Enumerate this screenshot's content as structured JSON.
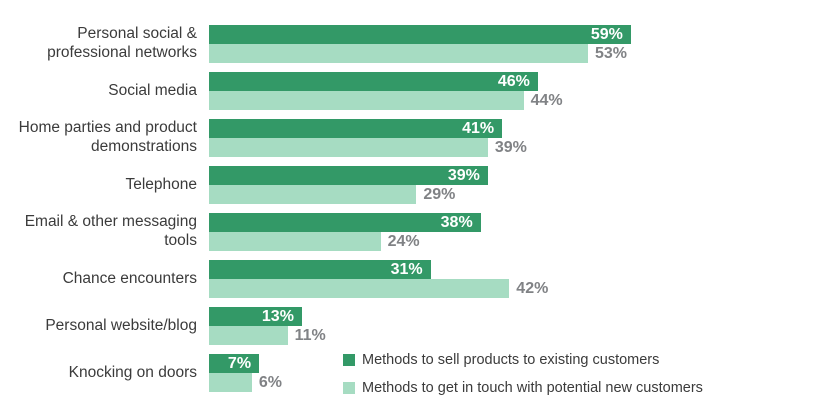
{
  "colors": {
    "dark_series": "#339967",
    "light_series": "#a6dcc2",
    "outside_value_text": "#808285",
    "category_text": "#3b3b3b",
    "inside_value_text": "#ffffff"
  },
  "chart_data": {
    "type": "bar",
    "orientation": "horizontal",
    "title": "",
    "xlabel": "",
    "ylabel": "",
    "xlim": [
      0,
      100
    ],
    "grid": false,
    "value_suffix": "%",
    "legend_position": "bottom-right",
    "categories": [
      "Personal social & professional networks",
      "Social media",
      "Home parties and product demonstrations",
      "Telephone",
      "Email & other messaging tools",
      "Chance encounters",
      "Personal website/blog",
      "Knocking on doors"
    ],
    "series": [
      {
        "name": "Methods to sell products to existing customers",
        "color_key": "dark_series",
        "value_label_position": "inside",
        "values": [
          59,
          46,
          41,
          39,
          38,
          31,
          13,
          7
        ]
      },
      {
        "name": "Methods to get in touch with potential new customers",
        "color_key": "light_series",
        "value_label_position": "outside",
        "values": [
          53,
          44,
          39,
          29,
          24,
          42,
          11,
          6
        ]
      }
    ]
  }
}
